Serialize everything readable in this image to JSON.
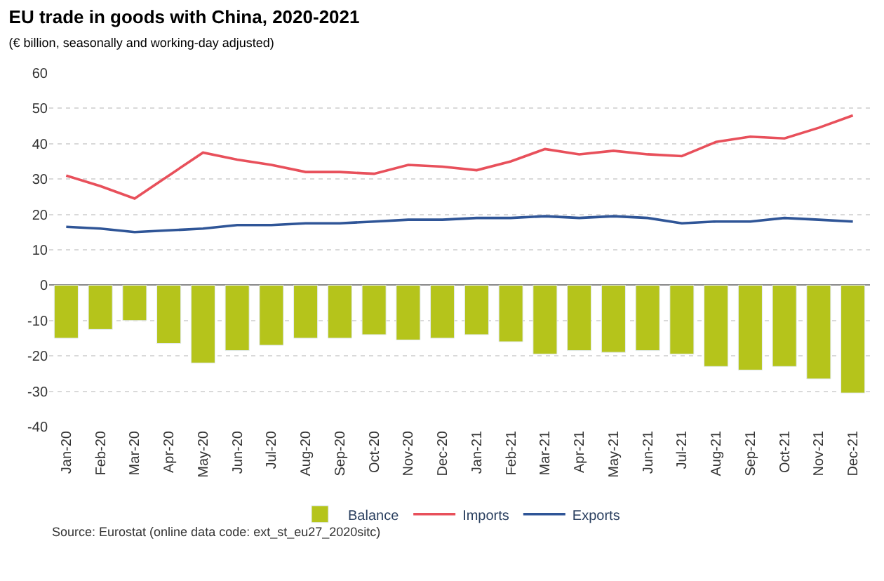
{
  "chart_data": {
    "type": "bar",
    "title": "EU trade in goods with China, 2020-2021",
    "subtitle": "(€ billion, seasonally and working-day adjusted)",
    "categories": [
      "Jan-20",
      "Feb-20",
      "Mar-20",
      "Apr-20",
      "May-20",
      "Jun-20",
      "Jul-20",
      "Aug-20",
      "Sep-20",
      "Oct-20",
      "Nov-20",
      "Dec-20",
      "Jan-21",
      "Feb-21",
      "Mar-21",
      "Apr-21",
      "May-21",
      "Jun-21",
      "Jul-21",
      "Aug-21",
      "Sep-21",
      "Oct-21",
      "Nov-21",
      "Dec-21"
    ],
    "series": [
      {
        "name": "Balance",
        "color": "#b5c41b",
        "values": [
          -15,
          -12.5,
          -10,
          -16.5,
          -22,
          -18.5,
          -17,
          -15,
          -15,
          -14,
          -15.5,
          -15,
          -14,
          -16,
          -19.5,
          -18.5,
          -19,
          -18.5,
          -19.5,
          -23,
          -24,
          -23,
          -26.5,
          -30.5
        ]
      },
      {
        "name": "Imports",
        "type": "line",
        "color": "#e8505b",
        "values": [
          31,
          28,
          24.5,
          31,
          37.5,
          35.5,
          34,
          32,
          32,
          31.5,
          34,
          33.5,
          32.5,
          35,
          38.5,
          37,
          38,
          37,
          36.5,
          40.5,
          42,
          41.5,
          44.5,
          48
        ]
      },
      {
        "name": "Exports",
        "type": "line",
        "color": "#2f5597",
        "values": [
          16.5,
          16,
          15,
          15.5,
          16,
          17,
          17,
          17.5,
          17.5,
          18,
          18.5,
          18.5,
          19,
          19,
          19.5,
          19,
          19.5,
          19,
          17.5,
          18,
          18,
          19,
          18.5,
          18
        ]
      }
    ],
    "ylim": [
      -40,
      60
    ],
    "yticks": [
      -40,
      -30,
      -20,
      -10,
      0,
      10,
      20,
      30,
      40,
      50,
      60
    ],
    "grid": "y",
    "legend": "bottom",
    "marker": "none",
    "line_style": "solid",
    "annotations": [
      "Source: Eurostat (online data code: ext_st_eu27_2020sitc)"
    ]
  }
}
